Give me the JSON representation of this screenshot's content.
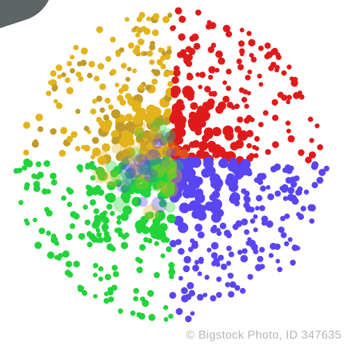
{
  "image": {
    "background": "#ffffff",
    "palette": {
      "yellow": "#e3b31c",
      "red": "#e01a1a",
      "blue": "#5a45f2",
      "green": "#21d43a",
      "olive": "#c19b2a",
      "corner": "#5f6467"
    },
    "clusters": [
      {
        "color": "yellow",
        "quadrant": "top-left"
      },
      {
        "color": "red",
        "quadrant": "top-right"
      },
      {
        "color": "blue",
        "quadrant": "bottom-right"
      },
      {
        "color": "green",
        "quadrant": "bottom-left"
      }
    ]
  },
  "watermark": {
    "text": "© Bigstock Photo, ID 347635"
  }
}
